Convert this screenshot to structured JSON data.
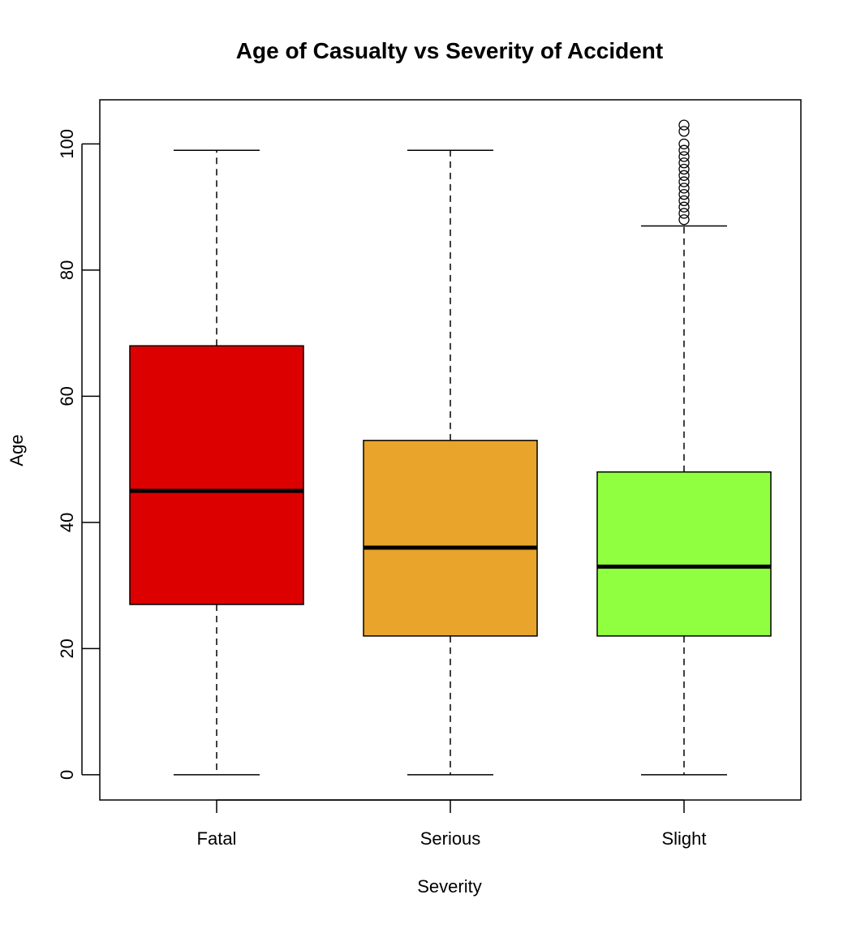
{
  "chart_data": {
    "type": "box",
    "title": "Age of Casualty vs Severity of Accident",
    "xlabel": "Severity",
    "ylabel": "Age",
    "ylim": [
      -4,
      107
    ],
    "yticks": [
      "0",
      "20",
      "40",
      "60",
      "80",
      "100"
    ],
    "grid": false,
    "legend": "none",
    "categories": [
      "Fatal",
      "Serious",
      "Slight"
    ],
    "series": [
      {
        "category": "Fatal",
        "color": "#dd0000",
        "whisker_low": 0,
        "q1": 27,
        "median": 45,
        "q3": 68,
        "whisker_high": 99,
        "outliers": []
      },
      {
        "category": "Serious",
        "color": "#e8a42b",
        "whisker_low": 0,
        "q1": 22,
        "median": 36,
        "q3": 53,
        "whisker_high": 99,
        "outliers": []
      },
      {
        "category": "Slight",
        "color": "#8fff3f",
        "whisker_low": 0,
        "q1": 22,
        "median": 33,
        "q3": 48,
        "whisker_high": 87,
        "outliers": [
          88,
          89,
          90,
          91,
          92,
          93,
          94,
          95,
          96,
          97,
          98,
          99,
          100,
          102,
          103
        ]
      }
    ]
  }
}
